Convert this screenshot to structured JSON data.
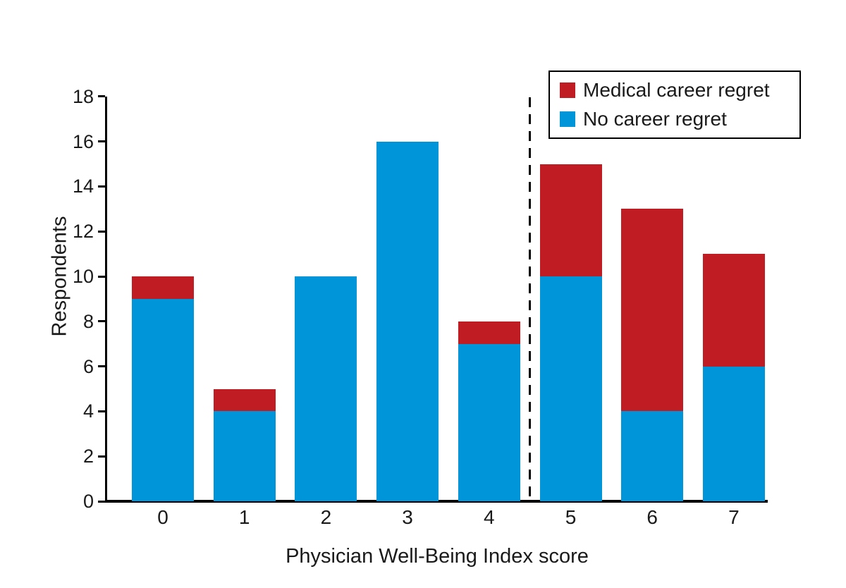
{
  "figure": {
    "background": "#ffffff",
    "text_color": "#1a1a1a",
    "axis_color": "#000000"
  },
  "chart_data": {
    "type": "bar",
    "stacked": true,
    "categories": [
      "0",
      "1",
      "2",
      "3",
      "4",
      "5",
      "6",
      "7"
    ],
    "series": [
      {
        "name": "Medical career regret",
        "color": "#bf1c24",
        "values": [
          1,
          1,
          0,
          0,
          1,
          5,
          9,
          5
        ]
      },
      {
        "name": "No career regret",
        "color": "#0095d8",
        "values": [
          9,
          4,
          10,
          16,
          7,
          10,
          4,
          6
        ]
      }
    ],
    "totals": [
      10,
      5,
      10,
      16,
      8,
      15,
      13,
      11
    ],
    "title": "",
    "xlabel": "Physician Well-Being Index score",
    "ylabel": "Respondents",
    "ylim": [
      0,
      18
    ],
    "yticks": [
      0,
      2,
      4,
      6,
      8,
      10,
      12,
      14,
      16,
      18
    ],
    "grid": false,
    "legend_position": "top-right",
    "divider": {
      "between_categories": [
        "4",
        "5"
      ],
      "style": "dashed",
      "color": "#000000"
    }
  }
}
